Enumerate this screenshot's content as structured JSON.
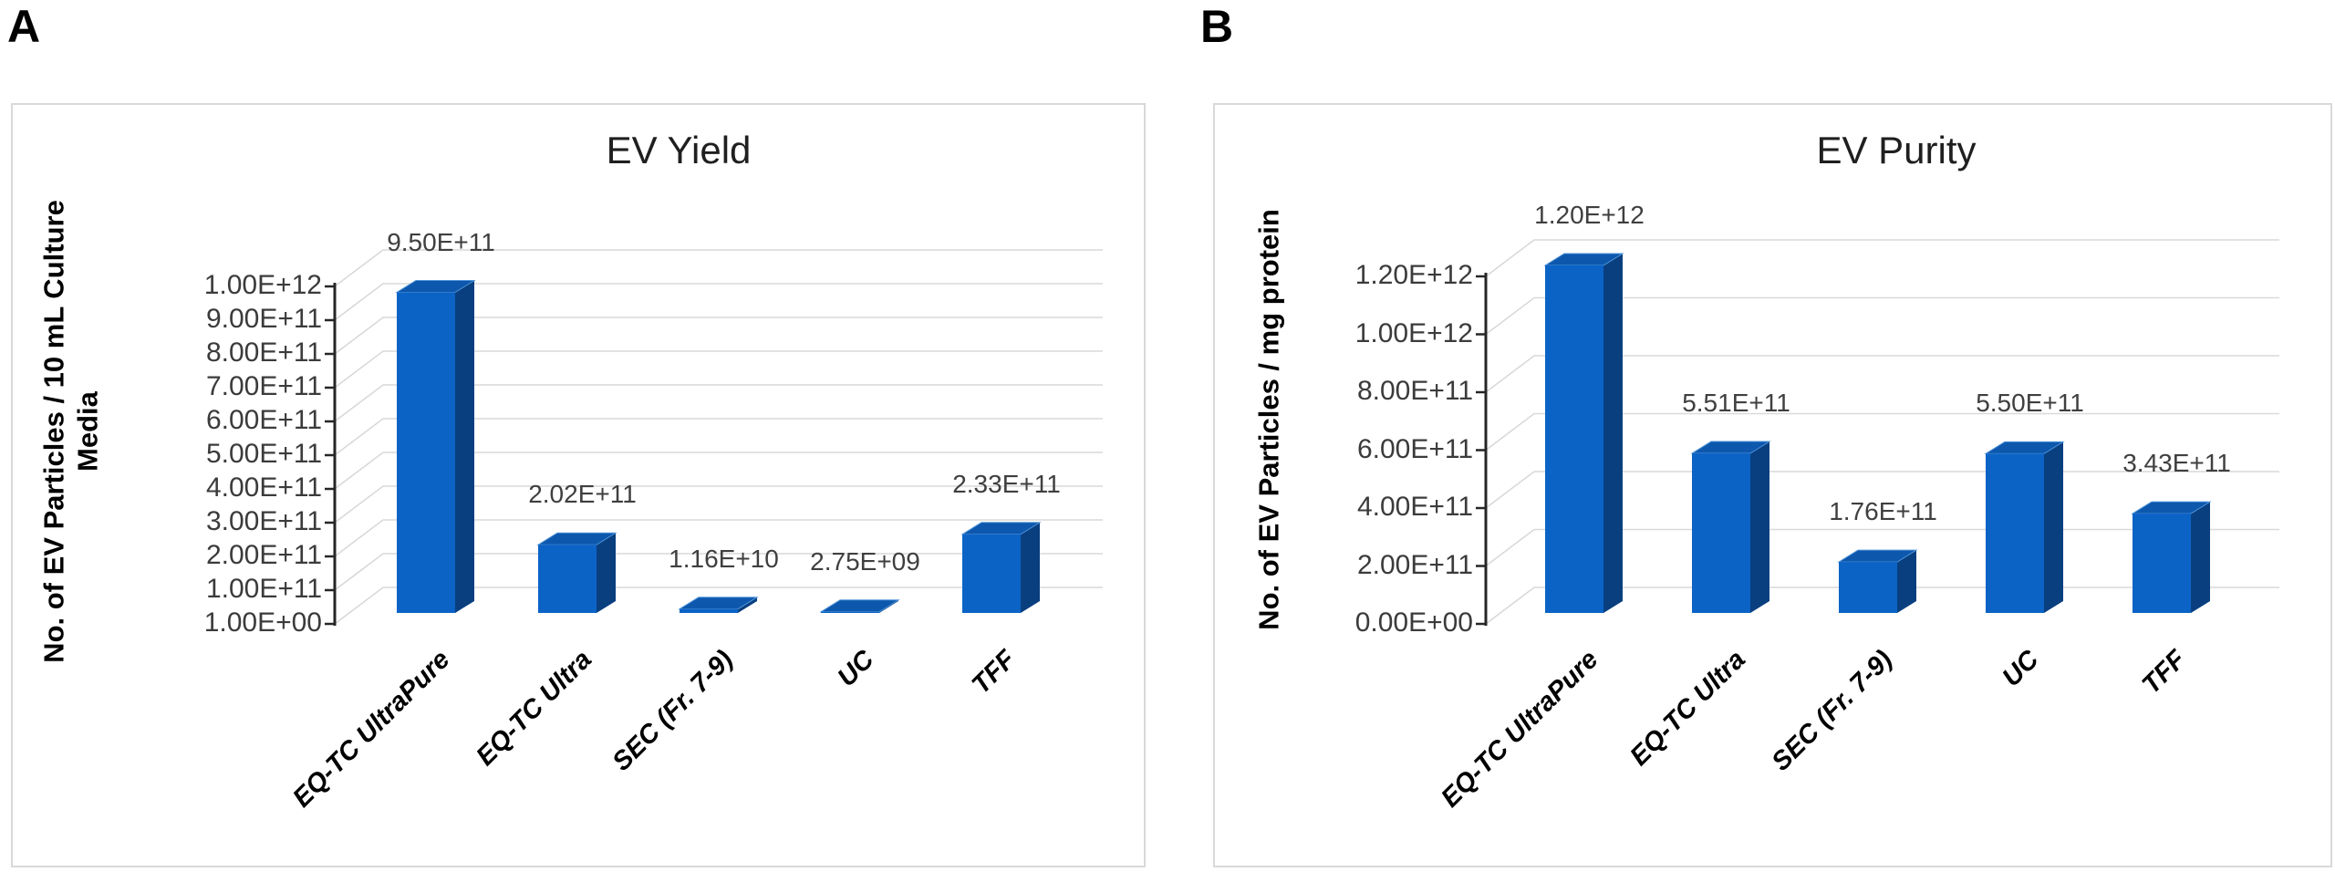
{
  "colors": {
    "bar_front": "#0C63C6",
    "bar_side": "#093F7F",
    "bar_top": "#0D58AD",
    "bar_top_highlight": "#4E93D9",
    "gridline": "#D9D9D9",
    "axis": "#262626",
    "tick_text": "#3B3B3B",
    "data_label_text": "#3F3F3F",
    "title_text": "#1F1F1F",
    "panel_border": "#D9D9D9"
  },
  "panels": [
    {
      "letter": "A",
      "title": "EV Yield",
      "y_axis_title": "No. of  EV Particles / 10 mL Culture Media",
      "y_axis_title_lines": [
        "No. of  EV Particles / 10 mL Culture",
        "Media"
      ],
      "y_ticks": [
        "1.00E+12",
        "9.00E+11",
        "8.00E+11",
        "7.00E+11",
        "6.00E+11",
        "5.00E+11",
        "4.00E+11",
        "3.00E+11",
        "2.00E+11",
        "1.00E+11",
        "1.00E+00"
      ],
      "categories": [
        "EQ-TC UltraPure",
        "EQ-TC Ultra",
        "SEC (Fr. 7-9)",
        "UC",
        "TFF"
      ],
      "data_labels": [
        "9.50E+11",
        "2.02E+11",
        "1.16E+10",
        "2.75E+09",
        "2.33E+11"
      ]
    },
    {
      "letter": "B",
      "title": "EV Purity",
      "y_axis_title": "No. of  EV Particles / mg protein",
      "y_axis_title_lines": [
        "No. of  EV Particles / mg protein"
      ],
      "y_ticks": [
        "1.20E+12",
        "1.00E+12",
        "8.00E+11",
        "6.00E+11",
        "4.00E+11",
        "2.00E+11",
        "0.00E+00"
      ],
      "categories": [
        "EQ-TC UltraPure",
        "EQ-TC Ultra",
        "SEC (Fr. 7-9)",
        "UC",
        "TFF"
      ],
      "data_labels": [
        "1.20E+12",
        "5.51E+11",
        "1.76E+11",
        "5.50E+11",
        "3.43E+11"
      ]
    }
  ],
  "chart_data": [
    {
      "type": "bar",
      "effect": "3d-column",
      "title": "EV Yield",
      "xlabel": "",
      "ylabel": "No. of  EV Particles / 10 mL Culture Media",
      "categories": [
        "EQ-TC UltraPure",
        "EQ-TC Ultra",
        "SEC (Fr. 7-9)",
        "UC",
        "TFF"
      ],
      "values": [
        950000000000,
        202000000000,
        11600000000,
        2750000000,
        233000000000
      ],
      "value_labels": [
        "9.50E+11",
        "2.02E+11",
        "1.16E+10",
        "2.75E+09",
        "2.33E+11"
      ],
      "ylim": [
        0,
        1000000000000
      ],
      "ytick_labels": [
        "1.00E+00",
        "1.00E+11",
        "2.00E+11",
        "3.00E+11",
        "4.00E+11",
        "5.00E+11",
        "6.00E+11",
        "7.00E+11",
        "8.00E+11",
        "9.00E+11",
        "1.00E+12"
      ],
      "grid": true,
      "legend": false,
      "bar_color": "#0C63C6"
    },
    {
      "type": "bar",
      "effect": "3d-column",
      "title": "EV Purity",
      "xlabel": "",
      "ylabel": "No. of  EV Particles / mg protein",
      "categories": [
        "EQ-TC UltraPure",
        "EQ-TC Ultra",
        "SEC (Fr. 7-9)",
        "UC",
        "TFF"
      ],
      "values": [
        1200000000000,
        551000000000,
        176000000000,
        550000000000,
        343000000000
      ],
      "value_labels": [
        "1.20E+12",
        "5.51E+11",
        "1.76E+11",
        "5.50E+11",
        "3.43E+11"
      ],
      "ylim": [
        0,
        1200000000000
      ],
      "ytick_labels": [
        "0.00E+00",
        "2.00E+11",
        "4.00E+11",
        "6.00E+11",
        "8.00E+11",
        "1.00E+12",
        "1.20E+12"
      ],
      "grid": true,
      "legend": false,
      "bar_color": "#0C63C6"
    }
  ]
}
